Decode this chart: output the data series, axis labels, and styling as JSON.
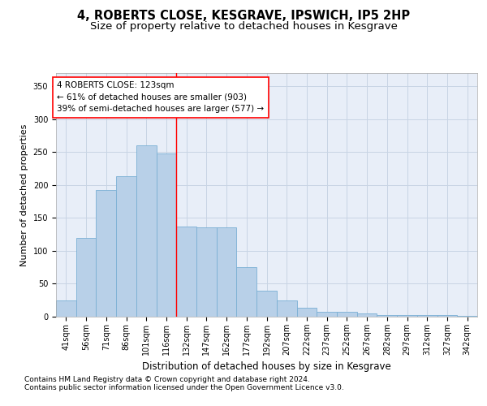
{
  "title1": "4, ROBERTS CLOSE, KESGRAVE, IPSWICH, IP5 2HP",
  "title2": "Size of property relative to detached houses in Kesgrave",
  "xlabel": "Distribution of detached houses by size in Kesgrave",
  "ylabel": "Number of detached properties",
  "categories": [
    "41sqm",
    "56sqm",
    "71sqm",
    "86sqm",
    "101sqm",
    "116sqm",
    "132sqm",
    "147sqm",
    "162sqm",
    "177sqm",
    "192sqm",
    "207sqm",
    "222sqm",
    "237sqm",
    "252sqm",
    "267sqm",
    "282sqm",
    "297sqm",
    "312sqm",
    "327sqm",
    "342sqm"
  ],
  "values": [
    25,
    120,
    193,
    213,
    260,
    248,
    137,
    136,
    136,
    75,
    40,
    25,
    14,
    8,
    8,
    5,
    3,
    2,
    2,
    2,
    1
  ],
  "bar_color": "#b8d0e8",
  "bar_edge_color": "#7aafd4",
  "bar_linewidth": 0.6,
  "grid_color": "#c8d4e4",
  "background_color": "#e8eef8",
  "ylim": [
    0,
    370
  ],
  "yticks": [
    0,
    50,
    100,
    150,
    200,
    250,
    300,
    350
  ],
  "red_line_bin": 5.5,
  "annotation_text_line1": "4 ROBERTS CLOSE: 123sqm",
  "annotation_text_line2": "← 61% of detached houses are smaller (903)",
  "annotation_text_line3": "39% of semi-detached houses are larger (577) →",
  "footnote_line1": "Contains HM Land Registry data © Crown copyright and database right 2024.",
  "footnote_line2": "Contains public sector information licensed under the Open Government Licence v3.0.",
  "title1_fontsize": 10.5,
  "title2_fontsize": 9.5,
  "xlabel_fontsize": 8.5,
  "ylabel_fontsize": 8,
  "tick_fontsize": 7,
  "annot_fontsize": 7.5,
  "footnote_fontsize": 6.5
}
